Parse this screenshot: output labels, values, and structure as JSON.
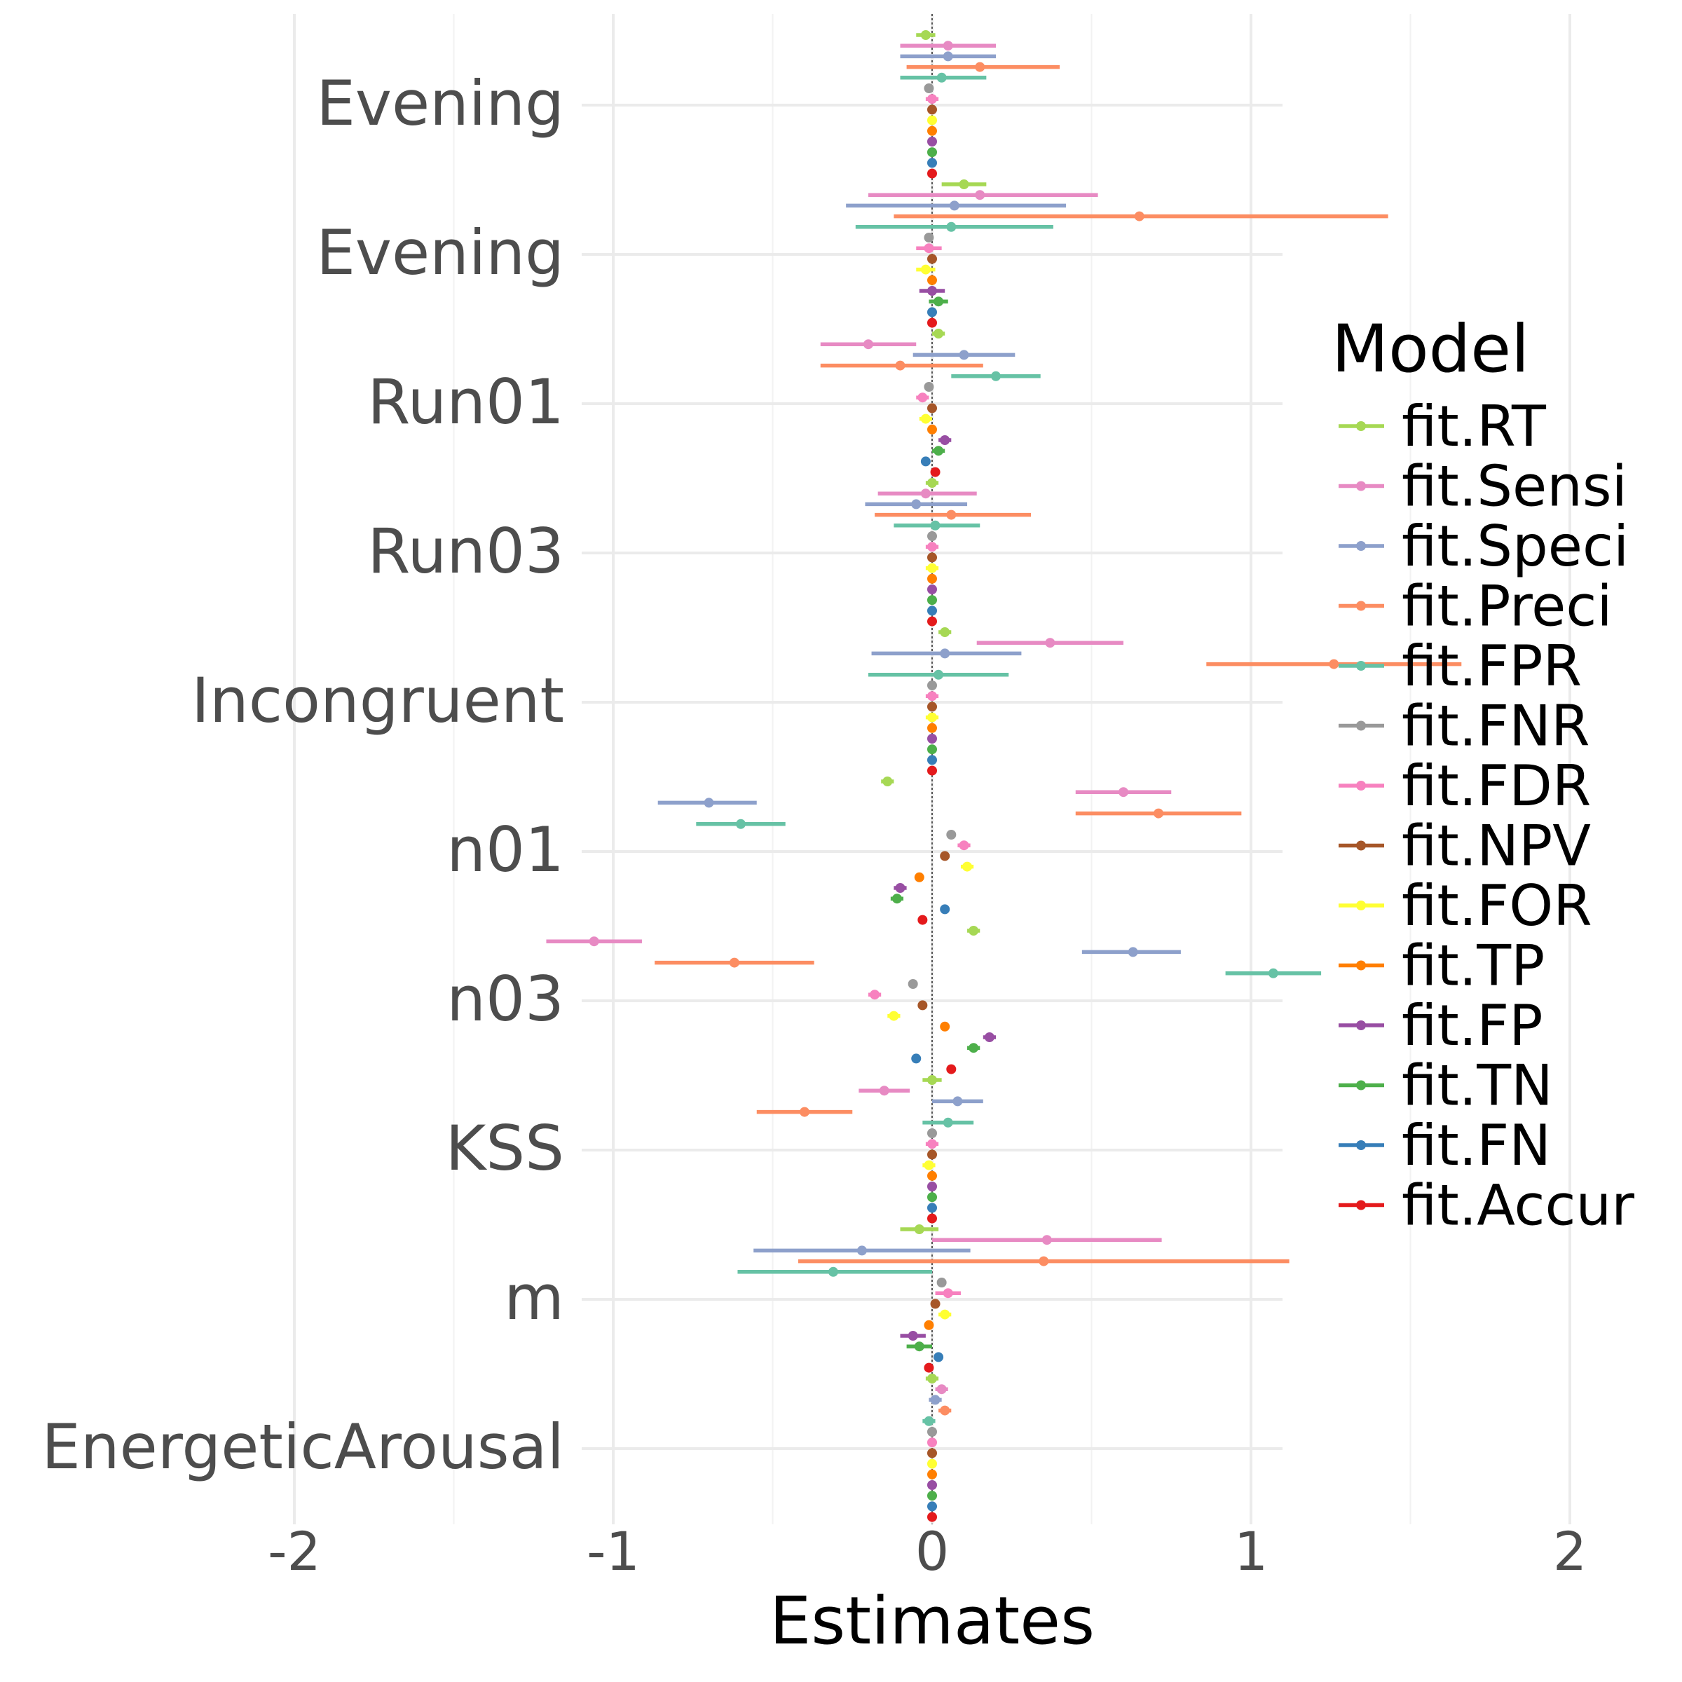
{
  "chart_data": {
    "type": "scatter",
    "subtype": "coefficient-plot",
    "xlabel": "Estimates",
    "ylabel": "",
    "xlim": [
      -2.2,
      2.2
    ],
    "x_ticks": [
      "-2",
      "-1",
      "0",
      "1",
      "2"
    ],
    "x_tick_values": [
      -2,
      -1,
      0,
      1,
      2
    ],
    "grid": true,
    "reference_line": 0,
    "categories": [
      "Evening",
      "Evening",
      "Run01",
      "Run03",
      "Incongruent",
      "n01",
      "n03",
      "KSS",
      "m",
      "EnergeticArousal"
    ],
    "legend": {
      "title": "Model",
      "position": "right",
      "entries": [
        "fit.RT",
        "fit.Sensi",
        "fit.Speci",
        "fit.Preci",
        "fit.FPR",
        "fit.FNR",
        "fit.FDR",
        "fit.NPV",
        "fit.FOR",
        "fit.TP",
        "fit.FP",
        "fit.TN",
        "fit.FN",
        "fit.Accur"
      ]
    },
    "colors": [
      "#a6d854",
      "#e78ac3",
      "#8da0cb",
      "#fc8d62",
      "#66c2a5",
      "#999999",
      "#f781bf",
      "#a65628",
      "#ffff33",
      "#ff7f00",
      "#984ea3",
      "#4daf4a",
      "#377eb8",
      "#e41a1c"
    ],
    "series": [
      {
        "name": "fit.RT",
        "estimates": [
          -0.02,
          0.1,
          0.02,
          0.0,
          0.04,
          -0.14,
          0.13,
          0.0,
          -0.04,
          0.0
        ],
        "ci_low": [
          -0.05,
          0.03,
          0.0,
          -0.02,
          0.02,
          -0.16,
          0.11,
          -0.03,
          -0.1,
          -0.02
        ],
        "ci_high": [
          0.01,
          0.17,
          0.04,
          0.02,
          0.06,
          -0.12,
          0.15,
          0.03,
          0.02,
          0.02
        ]
      },
      {
        "name": "fit.Sensi",
        "estimates": [
          0.05,
          0.15,
          -0.2,
          -0.02,
          0.37,
          0.6,
          -1.06,
          -0.15,
          0.36,
          0.03
        ],
        "ci_low": [
          -0.1,
          -0.2,
          -0.35,
          -0.17,
          0.14,
          0.45,
          -1.21,
          -0.23,
          0.0,
          0.01
        ],
        "ci_high": [
          0.2,
          0.52,
          -0.05,
          0.14,
          0.6,
          0.75,
          -0.91,
          -0.07,
          0.72,
          0.05
        ]
      },
      {
        "name": "fit.Speci",
        "estimates": [
          0.05,
          0.07,
          0.1,
          -0.05,
          0.04,
          -0.7,
          0.63,
          0.08,
          -0.22,
          0.01
        ],
        "ci_low": [
          -0.1,
          -0.27,
          -0.06,
          -0.21,
          -0.19,
          -0.86,
          0.47,
          0.0,
          -0.56,
          -0.01
        ],
        "ci_high": [
          0.2,
          0.42,
          0.26,
          0.11,
          0.28,
          -0.55,
          0.78,
          0.16,
          0.12,
          0.03
        ]
      },
      {
        "name": "fit.Preci",
        "estimates": [
          0.15,
          0.65,
          -0.1,
          0.06,
          1.26,
          0.71,
          -0.62,
          -0.4,
          0.35,
          0.04
        ],
        "ci_low": [
          -0.08,
          -0.12,
          -0.35,
          -0.18,
          0.86,
          0.45,
          -0.87,
          -0.55,
          -0.42,
          0.02
        ],
        "ci_high": [
          0.4,
          1.43,
          0.16,
          0.31,
          1.66,
          0.97,
          -0.37,
          -0.25,
          1.12,
          0.06
        ]
      },
      {
        "name": "fit.FPR",
        "estimates": [
          0.03,
          0.06,
          0.2,
          0.01,
          0.02,
          -0.6,
          1.07,
          0.05,
          -0.31,
          -0.01
        ],
        "ci_low": [
          -0.1,
          -0.24,
          0.06,
          -0.12,
          -0.2,
          -0.74,
          0.92,
          -0.03,
          -0.61,
          -0.03
        ],
        "ci_high": [
          0.17,
          0.38,
          0.34,
          0.15,
          0.24,
          -0.46,
          1.22,
          0.13,
          0.0,
          0.01
        ]
      },
      {
        "name": "fit.FNR",
        "estimates": [
          -0.01,
          -0.01,
          -0.01,
          0.0,
          0.0,
          0.06,
          -0.06,
          0.0,
          0.03,
          0.0
        ],
        "ci_low": [
          -0.02,
          -0.02,
          -0.02,
          -0.01,
          -0.01,
          0.05,
          -0.07,
          -0.01,
          0.02,
          -0.01
        ],
        "ci_high": [
          0.0,
          0.0,
          0.0,
          0.01,
          0.01,
          0.07,
          -0.05,
          0.01,
          0.04,
          0.01
        ]
      },
      {
        "name": "fit.FDR",
        "estimates": [
          0.0,
          -0.01,
          -0.03,
          0.0,
          0.0,
          0.1,
          -0.18,
          0.0,
          0.05,
          0.0
        ],
        "ci_low": [
          -0.02,
          -0.05,
          -0.05,
          -0.02,
          -0.02,
          0.08,
          -0.2,
          -0.02,
          0.01,
          -0.01
        ],
        "ci_high": [
          0.02,
          0.03,
          -0.01,
          0.02,
          0.02,
          0.12,
          -0.16,
          0.02,
          0.09,
          0.01
        ]
      },
      {
        "name": "fit.NPV",
        "estimates": [
          0.0,
          0.0,
          0.0,
          0.0,
          0.0,
          0.04,
          -0.03,
          0.0,
          0.01,
          0.0
        ],
        "ci_low": [
          -0.01,
          -0.01,
          -0.01,
          -0.01,
          -0.01,
          0.03,
          -0.04,
          -0.01,
          0.0,
          -0.01
        ],
        "ci_high": [
          0.01,
          0.01,
          0.01,
          0.01,
          0.01,
          0.05,
          -0.02,
          0.01,
          0.02,
          0.01
        ]
      },
      {
        "name": "fit.FOR",
        "estimates": [
          0.0,
          -0.02,
          -0.02,
          0.0,
          0.0,
          0.11,
          -0.12,
          -0.01,
          0.04,
          0.0
        ],
        "ci_low": [
          -0.01,
          -0.05,
          -0.04,
          -0.02,
          -0.02,
          0.09,
          -0.14,
          -0.03,
          0.02,
          -0.01
        ],
        "ci_high": [
          0.01,
          0.01,
          0.0,
          0.02,
          0.02,
          0.13,
          -0.1,
          0.01,
          0.06,
          0.01
        ]
      },
      {
        "name": "fit.TP",
        "estimates": [
          0.0,
          0.0,
          0.0,
          0.0,
          0.0,
          -0.04,
          0.04,
          0.0,
          -0.01,
          0.0
        ],
        "ci_low": [
          -0.01,
          -0.01,
          -0.01,
          -0.01,
          -0.01,
          -0.05,
          0.03,
          -0.01,
          -0.02,
          -0.01
        ],
        "ci_high": [
          0.01,
          0.01,
          0.01,
          0.01,
          0.01,
          -0.03,
          0.05,
          0.01,
          0.0,
          0.01
        ]
      },
      {
        "name": "fit.FP",
        "estimates": [
          0.0,
          0.0,
          0.04,
          0.0,
          0.0,
          -0.1,
          0.18,
          0.0,
          -0.06,
          0.0
        ],
        "ci_low": [
          -0.01,
          -0.04,
          0.02,
          -0.01,
          -0.01,
          -0.12,
          0.16,
          -0.01,
          -0.1,
          -0.01
        ],
        "ci_high": [
          0.01,
          0.04,
          0.06,
          0.01,
          0.01,
          -0.08,
          0.2,
          0.01,
          -0.02,
          0.01
        ]
      },
      {
        "name": "fit.TN",
        "estimates": [
          0.0,
          0.02,
          0.02,
          0.0,
          0.0,
          -0.11,
          0.13,
          0.0,
          -0.04,
          0.0
        ],
        "ci_low": [
          -0.01,
          -0.01,
          0.0,
          -0.01,
          -0.01,
          -0.13,
          0.11,
          -0.01,
          -0.08,
          -0.01
        ],
        "ci_high": [
          0.01,
          0.05,
          0.04,
          0.01,
          0.01,
          -0.09,
          0.15,
          0.01,
          0.0,
          0.01
        ]
      },
      {
        "name": "fit.FN",
        "estimates": [
          0.0,
          0.0,
          -0.02,
          0.0,
          0.0,
          0.04,
          -0.05,
          0.0,
          0.02,
          0.0
        ],
        "ci_low": [
          -0.01,
          -0.01,
          -0.03,
          -0.01,
          -0.01,
          0.03,
          -0.06,
          -0.01,
          0.01,
          -0.01
        ],
        "ci_high": [
          0.01,
          0.01,
          -0.01,
          0.01,
          0.01,
          0.05,
          -0.04,
          0.01,
          0.03,
          0.01
        ]
      },
      {
        "name": "fit.Accur",
        "estimates": [
          0.0,
          0.0,
          0.01,
          0.0,
          0.0,
          -0.03,
          0.06,
          0.0,
          -0.01,
          0.0
        ],
        "ci_low": [
          -0.01,
          -0.01,
          0.0,
          -0.01,
          -0.01,
          -0.04,
          0.05,
          -0.01,
          -0.02,
          -0.01
        ],
        "ci_high": [
          0.01,
          0.01,
          0.02,
          0.01,
          0.01,
          -0.02,
          0.07,
          0.01,
          0.0,
          0.01
        ]
      }
    ]
  }
}
